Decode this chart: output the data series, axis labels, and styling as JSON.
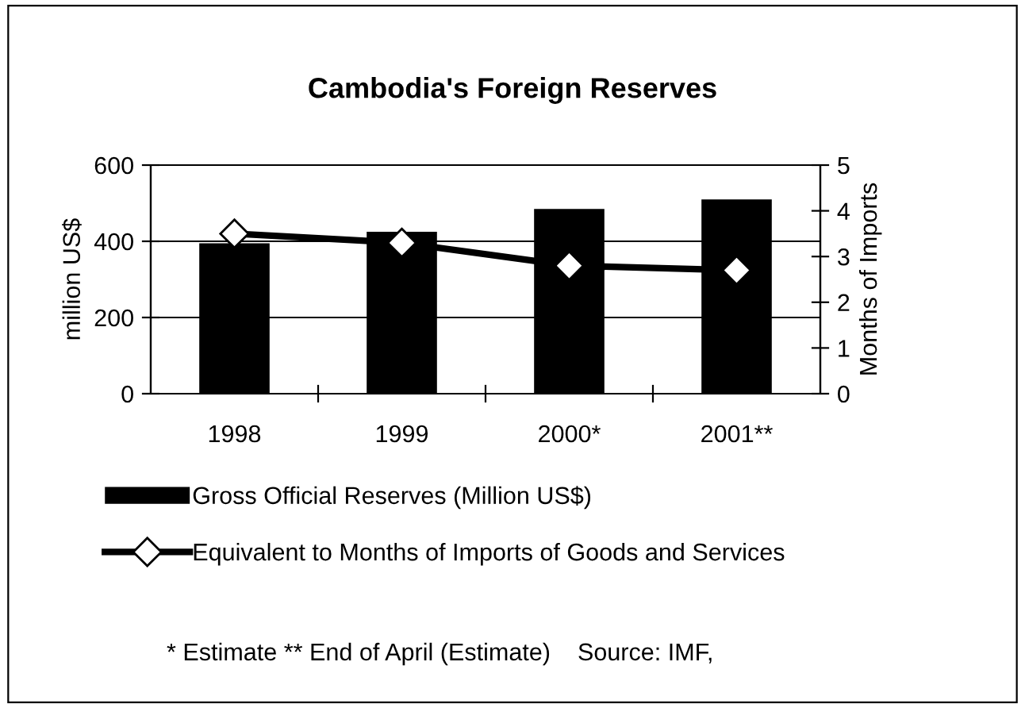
{
  "chart_data": {
    "type": "bar",
    "title": "Cambodia's Foreign Reserves",
    "ylabel": "million US$",
    "y2label": "Months of Imports",
    "categories": [
      "1998",
      "1999",
      "2000*",
      "2001**"
    ],
    "series": [
      {
        "name": "Gross Official Reserves (Million US$)",
        "color": "#000000",
        "values": [
          395,
          425,
          485,
          510
        ]
      },
      {
        "name": "Equivalent to Months of Imports of Goods and Services",
        "type": "line",
        "axis": "y2",
        "color": "#000000",
        "marker": "diamond",
        "values": [
          3.5,
          3.3,
          2.8,
          2.7
        ]
      }
    ],
    "ylim": [
      0,
      600
    ],
    "yticks": [
      0,
      200,
      400,
      600
    ],
    "y2lim": [
      0,
      5
    ],
    "y2ticks": [
      0,
      1,
      2,
      3,
      4,
      5
    ],
    "grid": "y",
    "legend": "bottom",
    "annotations": [
      "* Estimate ** End of April (Estimate)    Source: IMF,"
    ]
  }
}
